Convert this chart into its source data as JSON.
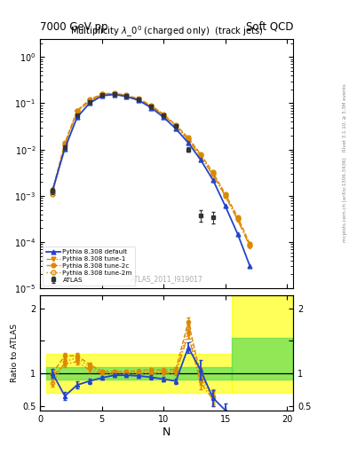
{
  "title_main": "Multiplicity $\\lambda\\_0^0$ (charged only)  (track jets)",
  "header_left": "7000 GeV pp",
  "header_right": "Soft QCD",
  "right_label_top": "Rivet 3.1.10, ≥ 3.3M events",
  "right_label_bot": "mcplots.cern.ch [arXiv:1306.3436]",
  "watermark": "ATLAS_2011_I919017",
  "atlas_x": [
    1,
    2,
    3,
    4,
    5,
    6,
    7,
    8,
    9,
    10,
    11,
    12,
    13,
    14
  ],
  "atlas_y": [
    0.0013,
    0.011,
    0.055,
    0.105,
    0.155,
    0.16,
    0.145,
    0.12,
    0.085,
    0.055,
    0.032,
    0.01,
    0.00038,
    0.00035
  ],
  "atlas_yerr": [
    0.0002,
    0.0008,
    0.003,
    0.005,
    0.006,
    0.006,
    0.005,
    0.005,
    0.004,
    0.003,
    0.002,
    0.001,
    0.0001,
    0.0001
  ],
  "pythia_default_x": [
    1,
    2,
    3,
    4,
    5,
    6,
    7,
    8,
    9,
    10,
    11,
    12,
    13,
    14,
    15,
    16,
    17
  ],
  "pythia_default_y": [
    0.0013,
    0.0105,
    0.05,
    0.1,
    0.145,
    0.155,
    0.14,
    0.115,
    0.08,
    0.05,
    0.028,
    0.014,
    0.006,
    0.0022,
    0.0006,
    0.00015,
    3e-05
  ],
  "tune1_x": [
    1,
    2,
    3,
    4,
    5,
    6,
    7,
    8,
    9,
    10,
    11,
    12,
    13,
    14,
    15,
    16,
    17
  ],
  "tune1_y": [
    0.0012,
    0.0125,
    0.065,
    0.11,
    0.155,
    0.16,
    0.145,
    0.12,
    0.085,
    0.055,
    0.032,
    0.016,
    0.007,
    0.0028,
    0.001,
    0.0003,
    8e-05
  ],
  "tune2c_x": [
    1,
    2,
    3,
    4,
    5,
    6,
    7,
    8,
    9,
    10,
    11,
    12,
    13,
    14,
    15,
    16,
    17
  ],
  "tune2c_y": [
    0.0013,
    0.014,
    0.07,
    0.12,
    0.16,
    0.165,
    0.15,
    0.125,
    0.09,
    0.058,
    0.034,
    0.018,
    0.008,
    0.0032,
    0.0011,
    0.00035,
    9e-05
  ],
  "tune2m_x": [
    1,
    2,
    3,
    4,
    5,
    6,
    7,
    8,
    9,
    10,
    11,
    12,
    13,
    14,
    15,
    16,
    17
  ],
  "tune2m_y": [
    0.0011,
    0.013,
    0.068,
    0.115,
    0.158,
    0.162,
    0.147,
    0.122,
    0.087,
    0.056,
    0.033,
    0.017,
    0.0075,
    0.003,
    0.001,
    0.00032,
    8.5e-05
  ],
  "ratio_x": [
    1,
    2,
    3,
    4,
    5,
    6,
    7,
    8,
    9,
    10,
    11,
    12,
    13,
    14,
    15
  ],
  "ratio_default_y": [
    1.0,
    0.65,
    0.82,
    0.88,
    0.93,
    0.97,
    0.97,
    0.96,
    0.94,
    0.91,
    0.88,
    1.4,
    1.05,
    0.62,
    0.43
  ],
  "ratio_default_e": [
    0.07,
    0.06,
    0.05,
    0.04,
    0.03,
    0.03,
    0.03,
    0.03,
    0.03,
    0.03,
    0.04,
    0.08,
    0.15,
    0.12,
    0.1
  ],
  "ratio_tune1_y": [
    0.95,
    1.14,
    1.18,
    1.05,
    1.0,
    1.0,
    1.0,
    1.0,
    1.0,
    1.0,
    1.0,
    1.6,
    0.85,
    0.6,
    null
  ],
  "ratio_tune1_e": [
    0.05,
    0.05,
    0.04,
    0.03,
    0.02,
    0.02,
    0.02,
    0.02,
    0.02,
    0.02,
    0.03,
    0.06,
    0.1,
    0.1,
    null
  ],
  "ratio_tune2c_y": [
    1.0,
    1.27,
    1.27,
    1.14,
    1.03,
    1.03,
    1.03,
    1.04,
    1.06,
    1.05,
    1.06,
    1.8,
    0.98,
    0.65,
    null
  ],
  "ratio_tune2c_e": [
    0.05,
    0.05,
    0.04,
    0.03,
    0.02,
    0.02,
    0.02,
    0.02,
    0.02,
    0.02,
    0.03,
    0.06,
    0.1,
    0.1,
    null
  ],
  "ratio_tune2m_y": [
    0.85,
    1.18,
    1.24,
    1.1,
    1.02,
    1.01,
    1.02,
    1.02,
    1.02,
    1.02,
    1.03,
    1.7,
    0.92,
    0.62,
    null
  ],
  "ratio_tune2m_e": [
    0.05,
    0.05,
    0.04,
    0.03,
    0.02,
    0.02,
    0.02,
    0.02,
    0.02,
    0.02,
    0.03,
    0.06,
    0.1,
    0.1,
    null
  ],
  "color_atlas": "#333333",
  "color_default": "#2244cc",
  "color_orange": "#dd8800",
  "xlim": [
    0.5,
    20.5
  ],
  "ylim_main": [
    1e-05,
    2.5
  ],
  "ylim_ratio": [
    0.42,
    2.2
  ],
  "yticks_ratio": [
    0.5,
    1.0,
    1.5,
    2.0
  ],
  "ytick_ratio_labels": [
    "0.5",
    "1",
    "",
    "2"
  ],
  "band_data_xlo": 0.5,
  "band_data_xhi": 15.5,
  "band_nodata_xlo": 15.5,
  "band_nodata_xhi": 20.5,
  "band_yellow_lo": 0.7,
  "band_yellow_hi": 1.3,
  "band_green_lo": 0.9,
  "band_green_hi": 1.1,
  "band_nodata_yellow_lo": 0.7,
  "band_nodata_yellow_hi": 2.2,
  "band_nodata_green_lo": 0.9,
  "band_nodata_green_hi": 1.55,
  "xlabel": "N",
  "ylabel_ratio": "Ratio to ATLAS"
}
